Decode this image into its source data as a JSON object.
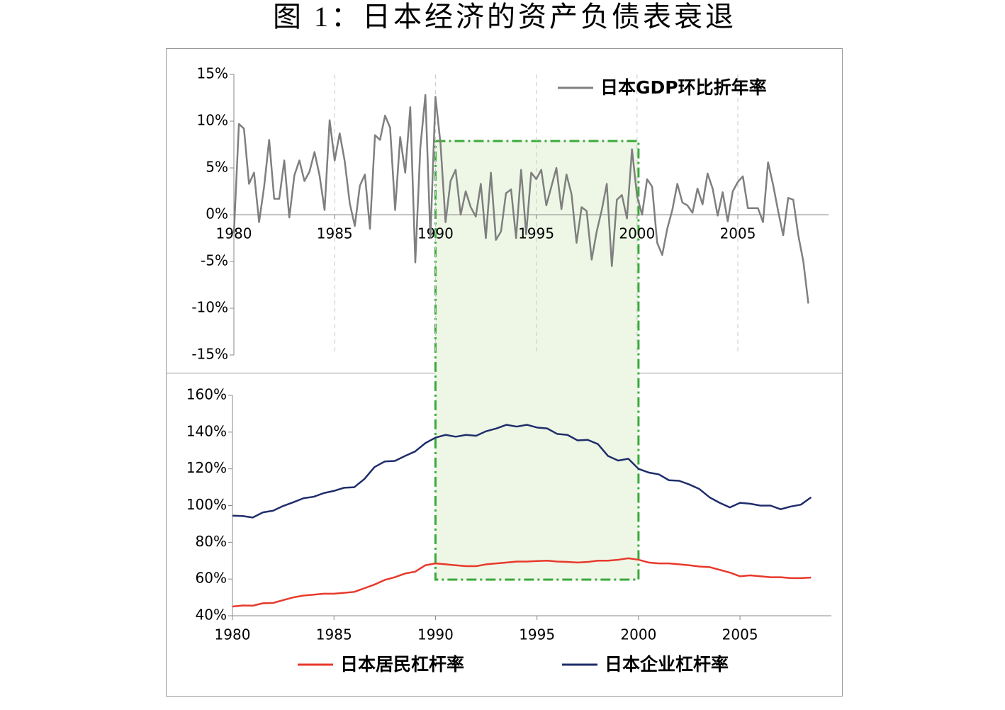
{
  "title": "图 1：日本经济的资产负债表衰退",
  "highlight": {
    "start": 1990,
    "end": 2000
  },
  "chart_data": [
    {
      "type": "line",
      "legend": "upper right",
      "grid": "x",
      "xlim": [
        1980,
        2009.5
      ],
      "xticks": [
        1980,
        1985,
        1990,
        1995,
        2000,
        2005
      ],
      "ylim": [
        -15,
        15
      ],
      "yticks": [
        {
          "value": -15,
          "label": "-15%"
        },
        {
          "value": -10,
          "label": "-10%"
        },
        {
          "value": -5,
          "label": "-5%"
        },
        {
          "value": 0,
          "label": "0%"
        },
        {
          "value": 5,
          "label": "5%"
        },
        {
          "value": 10,
          "label": "10%"
        },
        {
          "value": 15,
          "label": "15%"
        }
      ],
      "x": [
        1980,
        1980.25,
        1980.5,
        1980.75,
        1981,
        1981.25,
        1981.5,
        1981.75,
        1982,
        1982.25,
        1982.5,
        1982.75,
        1983,
        1983.25,
        1983.5,
        1983.75,
        1984,
        1984.25,
        1984.5,
        1984.75,
        1985,
        1985.25,
        1985.5,
        1985.75,
        1986,
        1986.25,
        1986.5,
        1986.75,
        1987,
        1987.25,
        1987.5,
        1987.75,
        1988,
        1988.25,
        1988.5,
        1988.75,
        1989,
        1989.25,
        1989.5,
        1989.75,
        1990,
        1990.25,
        1990.5,
        1990.75,
        1991,
        1991.25,
        1991.5,
        1991.75,
        1992,
        1992.25,
        1992.5,
        1992.75,
        1993,
        1993.25,
        1993.5,
        1993.75,
        1994,
        1994.25,
        1994.5,
        1994.75,
        1995,
        1995.25,
        1995.5,
        1995.75,
        1996,
        1996.25,
        1996.5,
        1996.75,
        1997,
        1997.25,
        1997.5,
        1997.75,
        1998,
        1998.25,
        1998.5,
        1998.75,
        1999,
        1999.25,
        1999.5,
        1999.75,
        2000,
        2000.25,
        2000.5,
        2000.75,
        2001,
        2001.25,
        2001.5,
        2001.75,
        2002,
        2002.25,
        2002.5,
        2002.75,
        2003,
        2003.25,
        2003.5,
        2003.75,
        2004,
        2004.25,
        2004.5,
        2004.75,
        2005,
        2005.25,
        2005.5,
        2005.75,
        2006,
        2006.25,
        2006.5,
        2006.75,
        2007,
        2007.25,
        2007.5,
        2007.75,
        2008,
        2008.25,
        2008.5
      ],
      "series": [
        {
          "name": "日本GDP环比折年率",
          "color": "#7f7f7f",
          "values": [
            -2,
            9.7,
            9.2,
            3.3,
            4.5,
            -0.8,
            3,
            8,
            1.7,
            1.7,
            5.8,
            -0.3,
            4.2,
            5.8,
            3.6,
            4.6,
            6.7,
            4.2,
            0.5,
            10.1,
            5.8,
            8.7,
            5.7,
            1.2,
            -1.2,
            3.1,
            4.3,
            -1.5,
            8.5,
            8.0,
            10.6,
            9.3,
            0.5,
            8.3,
            4.5,
            11.5,
            -5.1,
            7.2,
            12.8,
            -2.5,
            12.6,
            7.6,
            -0.8,
            3.6,
            4.8,
            0.0,
            2.5,
            0.8,
            -0.2,
            3.3,
            -2.5,
            4.5,
            -2.7,
            -1.8,
            2.3,
            2.7,
            -2.5,
            4.8,
            -2.1,
            4.5,
            3.8,
            4.8,
            1.0,
            3.0,
            5.0,
            0.6,
            4.3,
            2.2,
            -3.0,
            0.8,
            0.4,
            -4.8,
            -1.8,
            0.5,
            3.3,
            -5.5,
            1.6,
            2.1,
            -0.4,
            7.0,
            2.0,
            0.0,
            3.8,
            3.0,
            -3.0,
            -4.3,
            -1.5,
            0.5,
            3.3,
            1.3,
            1.0,
            0.2,
            2.8,
            1.1,
            4.4,
            2.8,
            -0.1,
            2.4,
            -0.7,
            2.5,
            3.5,
            4.1,
            0.7,
            0.7,
            0.7,
            -0.8,
            5.6,
            3.2,
            0.4,
            -2.2,
            1.8,
            1.6,
            -2.2,
            -5.0,
            -9.5
          ]
        }
      ]
    },
    {
      "type": "line",
      "legend": "bottom",
      "xlim": [
        1980,
        2009.5
      ],
      "xticks": [
        1980,
        1985,
        1990,
        1995,
        2000,
        2005
      ],
      "ylim": [
        40,
        160
      ],
      "yticks": [
        {
          "value": 40,
          "label": "40%"
        },
        {
          "value": 60,
          "label": "60%"
        },
        {
          "value": 80,
          "label": "80%"
        },
        {
          "value": 100,
          "label": "100%"
        },
        {
          "value": 120,
          "label": "120%"
        },
        {
          "value": 140,
          "label": "140%"
        },
        {
          "value": 160,
          "label": "160%"
        }
      ],
      "x": [
        1980,
        1980.5,
        1981,
        1981.5,
        1982,
        1982.5,
        1983,
        1983.5,
        1984,
        1984.5,
        1985,
        1985.5,
        1986,
        1986.5,
        1987,
        1987.5,
        1988,
        1988.5,
        1989,
        1989.5,
        1990,
        1990.5,
        1991,
        1991.5,
        1992,
        1992.5,
        1993,
        1993.5,
        1994,
        1994.5,
        1995,
        1995.5,
        1996,
        1996.5,
        1997,
        1997.5,
        1998,
        1998.5,
        1999,
        1999.5,
        2000,
        2000.5,
        2001,
        2001.5,
        2002,
        2002.5,
        2003,
        2003.5,
        2004,
        2004.5,
        2005,
        2005.5,
        2006,
        2006.5,
        2007,
        2007.5,
        2008,
        2008.5
      ],
      "series": [
        {
          "name": "日本居民杠杆率",
          "color": "#e8392b",
          "values": [
            45.0,
            45.6,
            45.5,
            46.8,
            47.0,
            48.5,
            50.0,
            51.0,
            51.5,
            52.0,
            52.0,
            52.5,
            53.0,
            55.0,
            57.0,
            59.5,
            61.0,
            63.0,
            64.0,
            67.5,
            68.5,
            68.0,
            67.5,
            67.0,
            67.0,
            68.0,
            68.5,
            69.0,
            69.5,
            69.5,
            69.8,
            70.0,
            69.5,
            69.3,
            69.0,
            69.3,
            70.0,
            70.0,
            70.5,
            71.3,
            70.5,
            69.0,
            68.5,
            68.5,
            68.0,
            67.5,
            66.8,
            66.5,
            65.0,
            63.5,
            61.5,
            62.0,
            61.5,
            61.0,
            61.0,
            60.5,
            60.5,
            60.8
          ]
        },
        {
          "name": "日本企业杠杆率",
          "color": "#1f2d6b",
          "values": [
            94.5,
            94.3,
            93.5,
            96.3,
            97.2,
            99.8,
            101.8,
            104.0,
            104.8,
            106.8,
            108.0,
            109.7,
            110.0,
            114.5,
            121.0,
            124.0,
            124.3,
            127.0,
            129.5,
            134.0,
            137.0,
            138.5,
            137.5,
            138.5,
            138.0,
            140.5,
            142.0,
            144.0,
            143.0,
            144.0,
            142.5,
            142.0,
            139.0,
            138.5,
            135.5,
            135.8,
            133.5,
            127.0,
            124.5,
            125.5,
            120.0,
            118.0,
            117.0,
            113.8,
            113.5,
            111.5,
            109.0,
            104.5,
            101.5,
            99.0,
            101.5,
            101.0,
            100.0,
            100.0,
            98.0,
            99.5,
            100.5,
            104.5
          ]
        }
      ]
    }
  ]
}
